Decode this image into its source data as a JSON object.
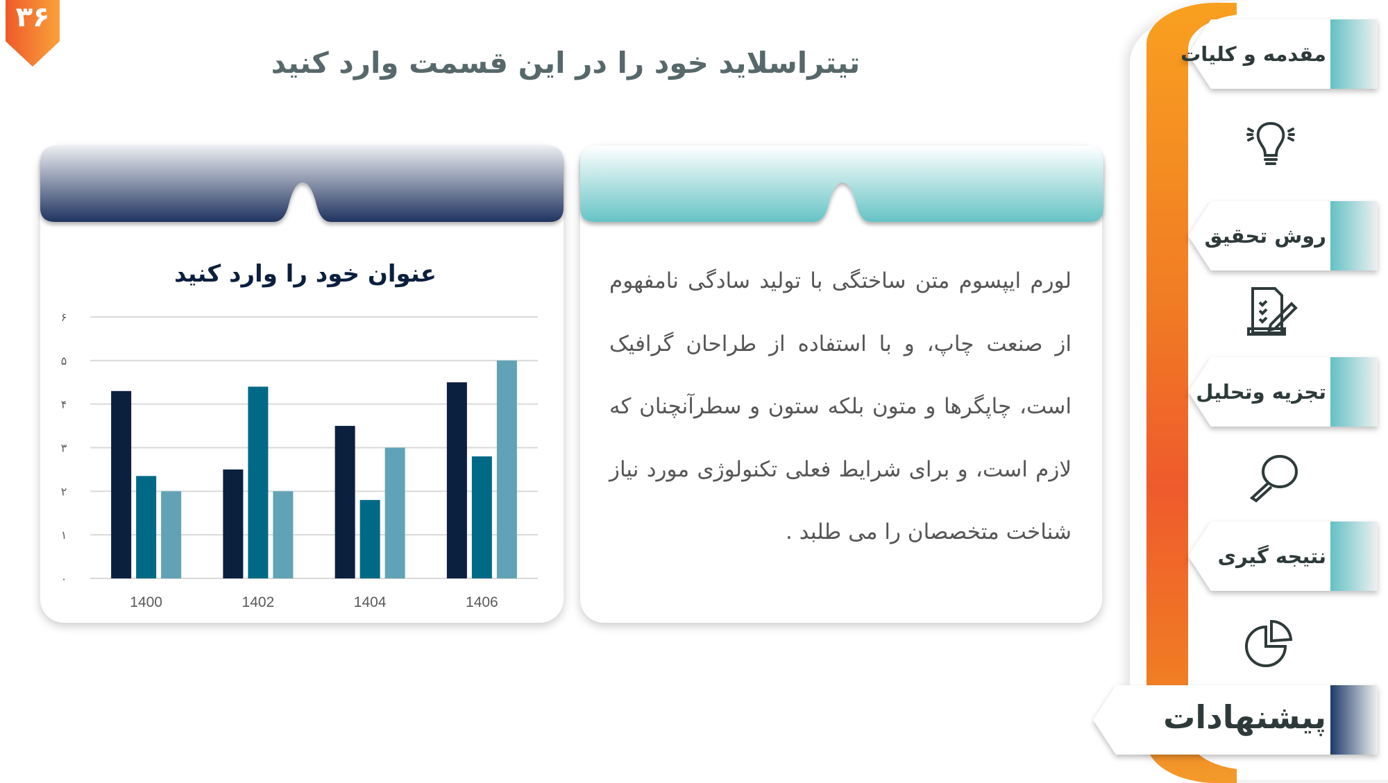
{
  "slide_number": "۳۶",
  "title": "تیتراسلاید خود را در این قسمت وارد کنید",
  "text_card": {
    "paragraph": "لورم ایپسوم متن ساختگی با تولید سادگی نامفهوم از صنعت چاپ، و با استفاده از طراحان گرافیک است، چاپگرها و متون بلکه ستون و سطرآنچنان که لازم است، و برای شرایط فعلی تکنولوژی مورد نیاز شناخت متخصصان را می طلبد ."
  },
  "sidebar": {
    "items": [
      {
        "label": "مقدمه و کلیات",
        "icon": "lightbulb-icon"
      },
      {
        "label": "روش تحقیق",
        "icon": "checklist-document-icon"
      },
      {
        "label": "تجزیه وتحلیل",
        "icon": "magnifier-icon"
      },
      {
        "label": "نتیجه گیری",
        "icon": "pie-chart-icon"
      },
      {
        "label": "پیشنهادات",
        "active": true
      }
    ],
    "accent": "#f07a24"
  },
  "chart_data": {
    "type": "bar",
    "title": "عنوان خود را وارد کنید",
    "categories": [
      "1400",
      "1402",
      "1404",
      "1406"
    ],
    "series": [
      {
        "values": [
          4.3,
          2.5,
          3.5,
          4.5
        ],
        "color": "#0b1f3f"
      },
      {
        "values": [
          2.35,
          4.4,
          1.8,
          2.8
        ],
        "color": "#006986"
      },
      {
        "values": [
          2.0,
          2.0,
          3.0,
          5.0
        ],
        "color": "#61a3b6"
      }
    ],
    "ylim": [
      0,
      6
    ],
    "yticks": [
      "۰",
      "۱",
      "۲",
      "۳",
      "۴",
      "۵",
      "۶"
    ],
    "grid": true,
    "legend": "none"
  }
}
